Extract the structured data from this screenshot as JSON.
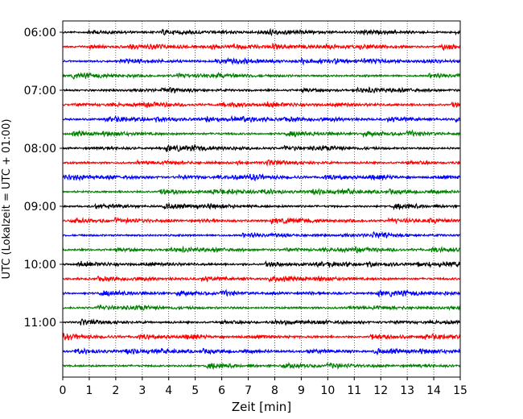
{
  "chart_data": {
    "type": "line",
    "subtype": "helicorder seismogram",
    "xlabel": "Zeit  [min]",
    "ylabel": "UTC (Lokalzeit = UTC + 01:00)",
    "xlim": [
      0,
      15
    ],
    "xticks": [
      "0",
      "1",
      "2",
      "3",
      "4",
      "5",
      "6",
      "7",
      "8",
      "9",
      "10",
      "11",
      "12",
      "13",
      "14",
      "15"
    ],
    "x_grid": "dotted vertical lines at each minute",
    "trace_interval_minutes": 15,
    "yticks": [
      "06:00",
      "07:00",
      "08:00",
      "09:00",
      "10:00",
      "11:00"
    ],
    "trace_start_times": [
      "06:00",
      "06:15",
      "06:30",
      "06:45",
      "07:00",
      "07:15",
      "07:30",
      "07:45",
      "08:00",
      "08:15",
      "08:30",
      "08:45",
      "09:00",
      "09:15",
      "09:30",
      "09:45",
      "10:00",
      "10:15",
      "10:30",
      "10:45",
      "11:00",
      "11:15",
      "11:30",
      "11:45"
    ],
    "trace_color_cycle": [
      "#000000",
      "#ff0000",
      "#0000ff",
      "#008000"
    ],
    "trace_style": "continuous low-amplitude noise, no distinct events"
  }
}
